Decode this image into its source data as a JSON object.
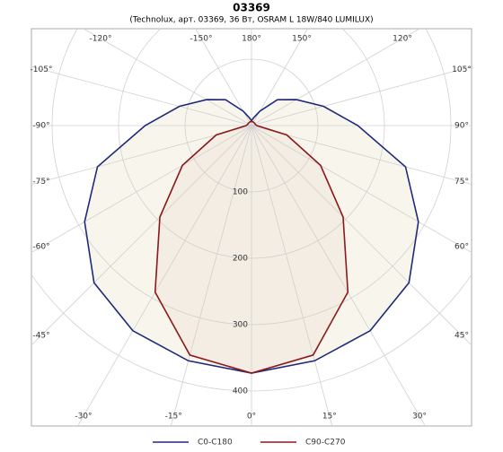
{
  "chart_data": {
    "type": "polar",
    "title": "03369",
    "subtitle": "(Technolux, арт. 03369, 36 Вт, OSRAM L 18W/840 LUMILUX)",
    "theta": [
      -180,
      -165,
      -150,
      -135,
      -120,
      -105,
      -90,
      -75,
      -60,
      -45,
      -30,
      -15,
      0,
      15,
      30,
      45,
      60,
      75,
      90,
      105,
      120,
      135,
      150,
      165,
      180
    ],
    "series": [
      {
        "name": "C0-C180",
        "color": "#1f2a7a",
        "values": [
          7,
          12,
          25,
          55,
          78,
          112,
          160,
          240,
          290,
          335,
          357,
          367,
          373,
          367,
          357,
          335,
          290,
          240,
          160,
          112,
          78,
          55,
          25,
          12,
          7
        ]
      },
      {
        "name": "C90-C270",
        "color": "#8b1a1a",
        "values": [
          6,
          6,
          6,
          6,
          6,
          6,
          8,
          55,
          120,
          195,
          290,
          358,
          373,
          358,
          290,
          195,
          120,
          55,
          8,
          6,
          6,
          6,
          6,
          6,
          6
        ]
      }
    ],
    "rticks": [
      100,
      200,
      300,
      400
    ],
    "thetaticks": [
      {
        "value": -120,
        "label": "-120°"
      },
      {
        "value": -150,
        "label": "-150°"
      },
      {
        "value": 180,
        "label": "180°"
      },
      {
        "value": 150,
        "label": "150°"
      },
      {
        "value": 120,
        "label": "120°"
      },
      {
        "value": -105,
        "label": "-105°"
      },
      {
        "value": 105,
        "label": "105°"
      },
      {
        "value": -90,
        "label": "-90°"
      },
      {
        "value": 90,
        "label": "90°"
      },
      {
        "value": -75,
        "label": "-75°"
      },
      {
        "value": 75,
        "label": "75°"
      },
      {
        "value": -60,
        "label": "-60°"
      },
      {
        "value": 60,
        "label": "60°"
      },
      {
        "value": -45,
        "label": "-45°"
      },
      {
        "value": 45,
        "label": "45°"
      },
      {
        "value": -30,
        "label": "-30°"
      },
      {
        "value": -15,
        "label": "-15°"
      },
      {
        "value": 0,
        "label": "0°"
      },
      {
        "value": 15,
        "label": "15°"
      },
      {
        "value": 30,
        "label": "30°"
      }
    ],
    "grid": true
  }
}
